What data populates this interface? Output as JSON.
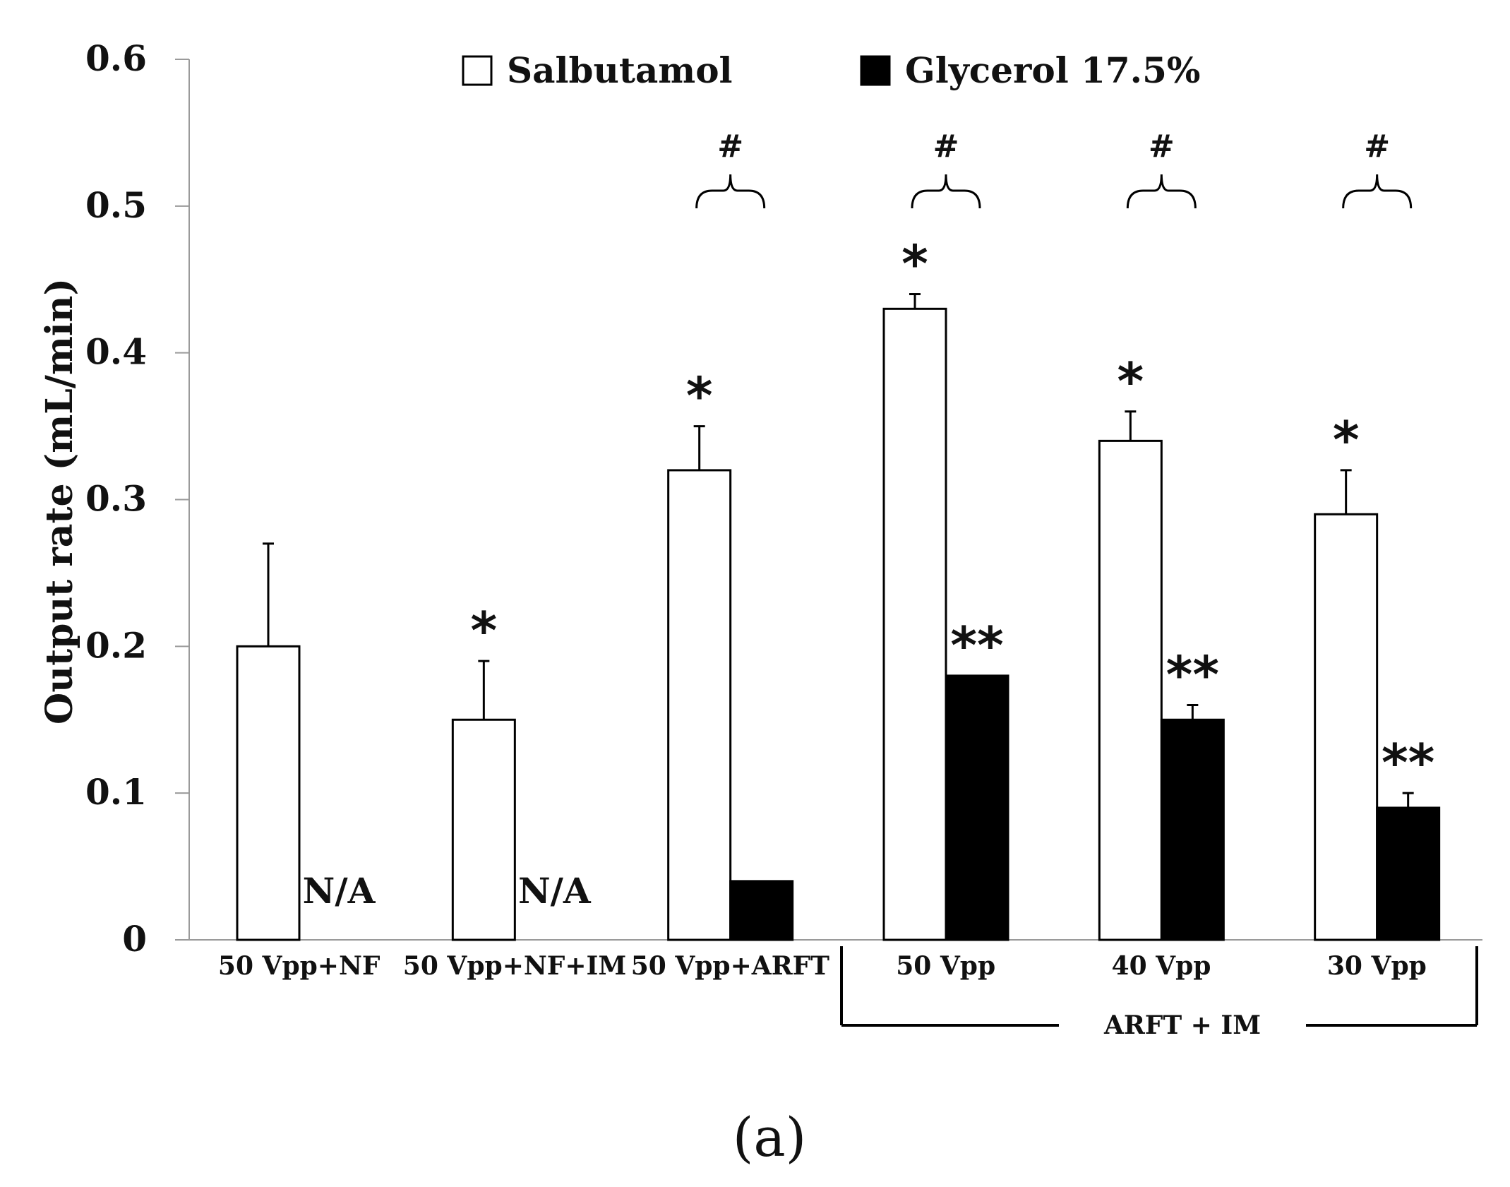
{
  "chart_data": {
    "type": "bar",
    "title": "",
    "xlabel": "",
    "ylabel": "Output rate (mL/min)",
    "ylim": [
      0,
      0.6
    ],
    "yticks": [
      "0",
      "0.1",
      "0.2",
      "0.3",
      "0.4",
      "0.5",
      "0.6"
    ],
    "grid": false,
    "legend_position": "top",
    "categories": [
      "50 Vpp+NF",
      "50 Vpp+NF+IM",
      "50 Vpp+ARFT",
      "50 Vpp",
      "40 Vpp",
      "30 Vpp"
    ],
    "group_label": "ARFT + IM",
    "group_span": [
      "50 Vpp",
      "30 Vpp"
    ],
    "series": [
      {
        "name": "Salbutamol",
        "color": "#ffffff",
        "values": [
          0.2,
          0.15,
          0.32,
          0.43,
          0.34,
          0.29
        ],
        "errors": [
          0.07,
          0.04,
          0.03,
          0.01,
          0.02,
          0.03
        ],
        "annotations": [
          "",
          "*",
          "*",
          "*",
          "*",
          "*"
        ]
      },
      {
        "name": "Glycerol 17.5%",
        "color": "#000000",
        "values": [
          null,
          null,
          0.04,
          0.18,
          0.15,
          0.09
        ],
        "errors": [
          0,
          0,
          0,
          0,
          0.01,
          0.01
        ],
        "annotations": [
          "",
          "",
          "",
          "**",
          "**",
          "**"
        ]
      }
    ],
    "not_available_label": "N/A",
    "pair_significance": [
      "",
      "",
      "#",
      "#",
      "#",
      "#"
    ]
  },
  "caption": "(a)"
}
